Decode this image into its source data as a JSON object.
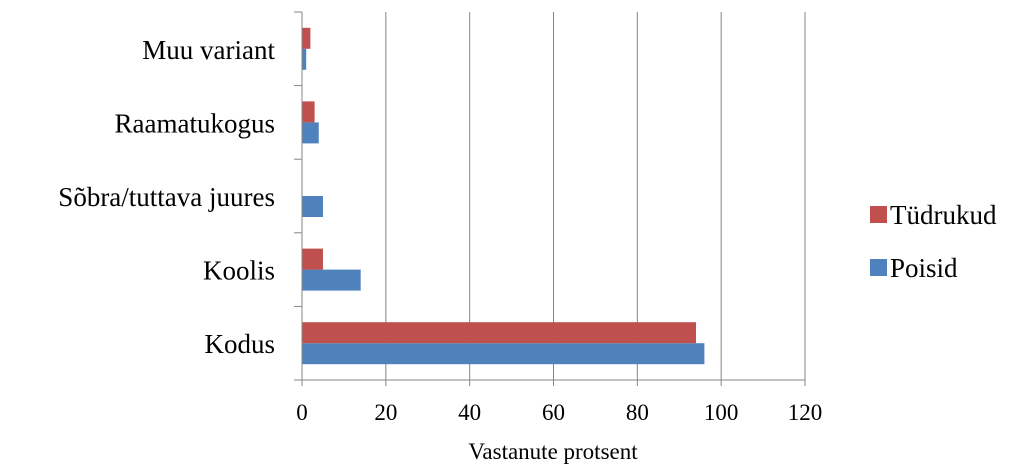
{
  "chart_data": {
    "type": "bar",
    "orientation": "horizontal",
    "categories": [
      "Kodus",
      "Koolis",
      "Sõbra/tuttava juures",
      "Raamatukogus",
      "Muu variant"
    ],
    "series": [
      {
        "name": "Poisid",
        "color": "#4F81BD",
        "values": [
          96,
          14,
          5,
          4,
          1
        ]
      },
      {
        "name": "Tüdrukud",
        "color": "#C0504D",
        "values": [
          94,
          5,
          0,
          3,
          2
        ]
      }
    ],
    "xlabel": "Vastanute protsent",
    "ylabel": "",
    "title": "",
    "xlim": [
      0,
      120
    ],
    "xticks": [
      0,
      20,
      40,
      60,
      80,
      100,
      120
    ],
    "xtick_labels": [
      "0",
      "20",
      "40",
      "60",
      "80",
      "100",
      "120"
    ],
    "grid": "vertical",
    "legend_position": "right",
    "legend_order": [
      "Tüdrukud",
      "Poisid"
    ]
  }
}
